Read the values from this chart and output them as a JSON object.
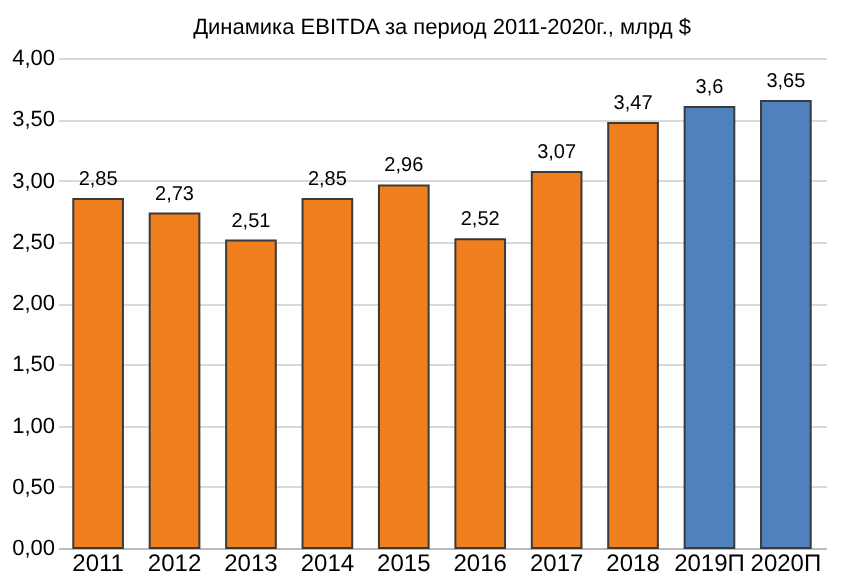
{
  "chart_data": {
    "type": "bar",
    "title": "Динамика EBITDA за период 2011-2020г.,  млрд $",
    "categories": [
      "2011",
      "2012",
      "2013",
      "2014",
      "2015",
      "2016",
      "2017",
      "2018",
      "2019П",
      "2020П"
    ],
    "values": [
      2.85,
      2.73,
      2.51,
      2.85,
      2.96,
      2.52,
      3.07,
      3.47,
      3.6,
      3.65
    ],
    "colors": [
      "#f07f1e",
      "#f07f1e",
      "#f07f1e",
      "#f07f1e",
      "#f07f1e",
      "#f07f1e",
      "#f07f1e",
      "#f07f1e",
      "#4f81bd",
      "#4f81bd"
    ],
    "value_labels": [
      "2,85",
      "2,73",
      "2,51",
      "2,85",
      "2,96",
      "2,52",
      "3,07",
      "3,47",
      "3,6",
      "3,65"
    ],
    "ylim": [
      0,
      4
    ],
    "yticks": [
      {
        "value": 0,
        "label": "0,00"
      },
      {
        "value": 0.5,
        "label": "0,50"
      },
      {
        "value": 1,
        "label": "1,00"
      },
      {
        "value": 1.5,
        "label": "1,50"
      },
      {
        "value": 2,
        "label": "2,00"
      },
      {
        "value": 2.5,
        "label": "2,50"
      },
      {
        "value": 3,
        "label": "3,00"
      },
      {
        "value": 3.5,
        "label": "3,50"
      },
      {
        "value": 4,
        "label": "4,00"
      }
    ],
    "grid": "y"
  }
}
